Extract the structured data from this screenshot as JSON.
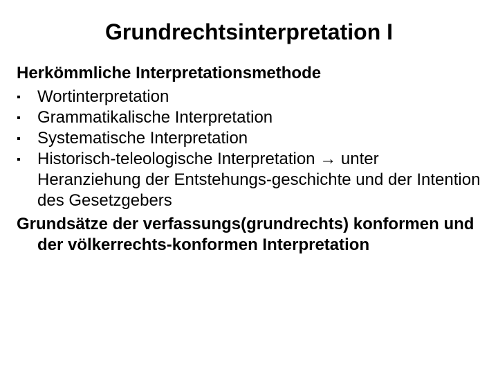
{
  "title": "Grundrechtsinterpretation I",
  "subhead": "Herkömmliche Interpretationsmethode",
  "bullets": [
    "Wortinterpretation",
    "Grammatikalische Interpretation",
    "Systematische Interpretation",
    "Historisch-teleologische Interpretation  → unter Heranziehung der Entstehungs-geschichte und der Intention des Gesetzgebers"
  ],
  "closing": "Grundsätze der verfassungs(grundrechts) konformen und der völkerrechts-konformen Interpretation",
  "style": {
    "background_color": "#ffffff",
    "text_color": "#000000",
    "title_fontsize_pt": 24,
    "body_fontsize_pt": 18,
    "font_family": "Arial",
    "bullet_glyph": "▪"
  }
}
